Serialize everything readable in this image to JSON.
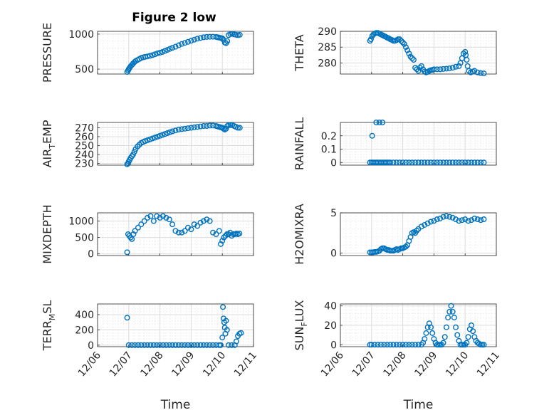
{
  "figure": {
    "title": "Figure 2 low"
  },
  "chart_data": [
    {
      "type": "scatter",
      "panel": "top-left",
      "title": "Figure 2 low",
      "ylabel": "PRESSURE",
      "xlabel": "",
      "xlim": [
        "12/06",
        "12/11"
      ],
      "ylim": [
        430,
        1040
      ],
      "yticks": [
        500,
        1000
      ],
      "xticks": [
        "12/06",
        "12/07",
        "12/08",
        "12/09",
        "12/10",
        "12/11"
      ],
      "grid": true,
      "series": [
        {
          "x": [
            0.95,
            0.98,
            1.0,
            1.03,
            1.06,
            1.1,
            1.14,
            1.18,
            1.22,
            1.28,
            1.34,
            1.4,
            1.46,
            1.52,
            1.6,
            1.68,
            1.76,
            1.84,
            1.92,
            2.0,
            2.08,
            2.16,
            2.24,
            2.32,
            2.4,
            2.5,
            2.6,
            2.7,
            2.8,
            2.9,
            3.0,
            3.1,
            3.2,
            3.3,
            3.4,
            3.5,
            3.6,
            3.7,
            3.8,
            3.85,
            3.9,
            3.95,
            4.0,
            4.04,
            4.08,
            4.12,
            4.16,
            4.2,
            4.26,
            4.32,
            4.38,
            4.44,
            4.5,
            4.56
          ],
          "y": [
            460,
            480,
            500,
            520,
            540,
            560,
            580,
            600,
            615,
            630,
            645,
            660,
            668,
            675,
            682,
            690,
            700,
            712,
            725,
            735,
            745,
            760,
            775,
            790,
            805,
            820,
            840,
            860,
            875,
            890,
            905,
            920,
            935,
            945,
            955,
            960,
            962,
            963,
            960,
            955,
            950,
            945,
            940,
            920,
            880,
            870,
            900,
            985,
            1000,
            1005,
            995,
            990,
            985,
            990
          ]
        }
      ]
    },
    {
      "type": "scatter",
      "panel": "top-right",
      "ylabel": "THETA",
      "xlabel": "",
      "xlim": [
        "12/06",
        "12/11"
      ],
      "ylim": [
        276.5,
        290
      ],
      "yticks": [
        280,
        285,
        290
      ],
      "xticks": [
        "12/06",
        "12/07",
        "12/08",
        "12/09",
        "12/10",
        "12/11"
      ],
      "grid": true,
      "series": [
        {
          "x": [
            0.95,
            0.98,
            1.02,
            1.06,
            1.1,
            1.15,
            1.2,
            1.25,
            1.3,
            1.35,
            1.4,
            1.45,
            1.5,
            1.55,
            1.6,
            1.65,
            1.7,
            1.75,
            1.8,
            1.85,
            1.9,
            1.95,
            2.0,
            2.05,
            2.1,
            2.15,
            2.2,
            2.25,
            2.3,
            2.35,
            2.4,
            2.45,
            2.5,
            2.55,
            2.6,
            2.65,
            2.7,
            2.75,
            2.8,
            2.85,
            2.9,
            2.95,
            3.0,
            3.1,
            3.2,
            3.3,
            3.4,
            3.5,
            3.6,
            3.7,
            3.8,
            3.85,
            3.9,
            3.95,
            4.0,
            4.02,
            4.05,
            4.08,
            4.12,
            4.18,
            4.24,
            4.3,
            4.4,
            4.5,
            4.6
          ],
          "y": [
            287,
            287.5,
            288.5,
            289,
            289.3,
            289.5,
            289.5,
            289.3,
            289,
            288.8,
            288.5,
            288.3,
            288,
            287.8,
            287.5,
            287.3,
            287,
            287,
            287.2,
            287.5,
            287.5,
            287,
            286.5,
            286,
            285,
            284,
            283,
            282,
            281.5,
            281,
            278.5,
            278,
            277.5,
            278.5,
            279,
            278,
            277.3,
            277,
            277.2,
            277.5,
            277.7,
            277.8,
            278,
            278,
            278,
            278.1,
            278.2,
            278.3,
            278.5,
            278.8,
            279,
            280,
            281.5,
            283,
            283.5,
            282.5,
            281,
            279,
            277.5,
            277,
            277.3,
            277.5,
            277,
            276.8,
            276.7
          ]
        }
      ]
    },
    {
      "type": "scatter",
      "panel": "second-left",
      "ylabel": "AIR_TEMP",
      "xlabel": "",
      "xlim": [
        "12/06",
        "12/11"
      ],
      "ylim": [
        228,
        276
      ],
      "yticks": [
        230,
        240,
        250,
        260,
        270
      ],
      "xticks": [
        "12/06",
        "12/07",
        "12/08",
        "12/09",
        "12/10",
        "12/11"
      ],
      "grid": true,
      "series": [
        {
          "x": [
            0.95,
            0.98,
            1.0,
            1.03,
            1.06,
            1.1,
            1.14,
            1.18,
            1.22,
            1.28,
            1.34,
            1.4,
            1.46,
            1.52,
            1.6,
            1.68,
            1.76,
            1.84,
            1.92,
            2.0,
            2.08,
            2.16,
            2.24,
            2.32,
            2.4,
            2.5,
            2.6,
            2.7,
            2.8,
            2.9,
            3.0,
            3.1,
            3.2,
            3.3,
            3.4,
            3.5,
            3.6,
            3.7,
            3.8,
            3.85,
            3.9,
            3.95,
            4.0,
            4.04,
            4.08,
            4.12,
            4.16,
            4.2,
            4.26,
            4.32,
            4.38,
            4.44,
            4.5,
            4.56
          ],
          "y": [
            229,
            230,
            232,
            234,
            236,
            238,
            240,
            243,
            246,
            249,
            251,
            253,
            254,
            255,
            256,
            257,
            258,
            259,
            260,
            261,
            262,
            263,
            264,
            265,
            266,
            267,
            268,
            268.5,
            269,
            269.5,
            270,
            270.5,
            271,
            271.5,
            272,
            272,
            272.5,
            272.5,
            272,
            271.5,
            271,
            270.5,
            270,
            269,
            268,
            269,
            272,
            273,
            273,
            273,
            272,
            271,
            270,
            270
          ]
        }
      ]
    },
    {
      "type": "scatter",
      "panel": "second-right",
      "ylabel": "RAINFALL",
      "xlabel": "",
      "xlim": [
        "12/06",
        "12/11"
      ],
      "ylim": [
        -0.02,
        0.3
      ],
      "yticks": [
        0,
        0.1,
        0.2
      ],
      "xticks": [
        "12/06",
        "12/07",
        "12/08",
        "12/09",
        "12/10",
        "12/11"
      ],
      "grid": true,
      "series": [
        {
          "x": [
            0.95,
            1.0,
            1.05,
            1.1,
            1.15,
            1.2,
            1.25,
            1.3,
            1.35,
            1.4,
            1.45,
            1.5,
            1.55,
            1.6,
            1.7,
            1.8,
            1.9,
            2.0,
            2.1,
            2.2,
            2.3,
            2.4,
            2.5,
            2.6,
            2.7,
            2.8,
            2.9,
            3.0,
            3.1,
            3.2,
            3.3,
            3.4,
            3.5,
            3.6,
            3.7,
            3.8,
            3.9,
            4.0,
            4.1,
            4.2,
            4.3,
            4.4,
            4.5,
            4.6,
            1.02,
            1.15,
            1.25,
            1.35
          ],
          "y": [
            0,
            0,
            0,
            0,
            0,
            0,
            0,
            0,
            0,
            0,
            0,
            0,
            0,
            0,
            0,
            0,
            0,
            0,
            0,
            0,
            0,
            0,
            0,
            0,
            0,
            0,
            0,
            0,
            0,
            0,
            0,
            0,
            0,
            0,
            0,
            0,
            0,
            0,
            0,
            0,
            0,
            0,
            0,
            0,
            0.2,
            0.3,
            0.3,
            0.3
          ]
        }
      ]
    },
    {
      "type": "scatter",
      "panel": "third-left",
      "ylabel": "MIXDEPTH",
      "xlabel": "",
      "xlim": [
        "12/06",
        "12/11"
      ],
      "ylim": [
        -50,
        1250
      ],
      "yticks": [
        0,
        500,
        1000
      ],
      "xticks": [
        "12/06",
        "12/07",
        "12/08",
        "12/09",
        "12/10",
        "12/11"
      ],
      "grid": true,
      "series": [
        {
          "x": [
            0.95,
            0.98,
            1.02,
            1.06,
            1.1,
            1.15,
            1.2,
            1.3,
            1.4,
            1.5,
            1.6,
            1.7,
            1.8,
            1.9,
            2.0,
            2.1,
            2.2,
            2.3,
            2.4,
            2.5,
            2.6,
            2.7,
            2.8,
            2.9,
            3.0,
            3.1,
            3.2,
            3.3,
            3.4,
            3.5,
            3.6,
            3.7,
            3.8,
            3.9,
            3.95,
            4.0,
            4.05,
            4.1,
            4.15,
            4.2,
            4.25,
            4.3,
            4.35,
            4.4,
            4.45,
            4.5,
            4.55
          ],
          "y": [
            50,
            600,
            550,
            500,
            450,
            600,
            700,
            800,
            900,
            1000,
            1100,
            1150,
            1000,
            1150,
            1100,
            1150,
            1100,
            1050,
            900,
            700,
            650,
            650,
            700,
            800,
            750,
            900,
            850,
            950,
            1000,
            1050,
            1000,
            650,
            600,
            700,
            300,
            400,
            500,
            550,
            600,
            600,
            650,
            550,
            600,
            600,
            620,
            600,
            620
          ]
        }
      ]
    },
    {
      "type": "scatter",
      "panel": "third-right",
      "ylabel": "H2OMIXRA",
      "xlabel": "",
      "xlim": [
        "12/06",
        "12/11"
      ],
      "ylim": [
        -0.3,
        5
      ],
      "yticks": [
        0,
        5
      ],
      "xticks": [
        "12/06",
        "12/07",
        "12/08",
        "12/09",
        "12/10",
        "12/11"
      ],
      "grid": true,
      "series": [
        {
          "x": [
            0.95,
            1.0,
            1.05,
            1.1,
            1.15,
            1.2,
            1.25,
            1.3,
            1.35,
            1.4,
            1.45,
            1.5,
            1.55,
            1.6,
            1.65,
            1.7,
            1.75,
            1.8,
            1.85,
            1.9,
            1.95,
            2.0,
            2.05,
            2.1,
            2.15,
            2.2,
            2.25,
            2.3,
            2.35,
            2.4,
            2.45,
            2.5,
            2.6,
            2.7,
            2.8,
            2.9,
            3.0,
            3.1,
            3.2,
            3.3,
            3.4,
            3.5,
            3.6,
            3.7,
            3.8,
            3.9,
            4.0,
            4.1,
            4.2,
            4.3,
            4.4,
            4.5,
            4.6
          ],
          "y": [
            0.1,
            0.1,
            0.1,
            0.15,
            0.15,
            0.2,
            0.3,
            0.5,
            0.6,
            0.6,
            0.5,
            0.4,
            0.4,
            0.3,
            0.3,
            0.3,
            0.4,
            0.5,
            0.4,
            0.5,
            0.6,
            0.6,
            0.7,
            0.8,
            1.0,
            1.5,
            2.0,
            2.5,
            2.6,
            2.5,
            2.8,
            3.0,
            3.3,
            3.5,
            3.7,
            3.9,
            4.0,
            4.2,
            4.3,
            4.5,
            4.6,
            4.5,
            4.4,
            4.2,
            4.0,
            4.1,
            4.2,
            4.0,
            4.1,
            4.3,
            4.2,
            4.1,
            4.2
          ]
        }
      ]
    },
    {
      "type": "scatter",
      "panel": "bottom-left",
      "ylabel": "TERR_MSL",
      "xlabel": "Time",
      "xlim": [
        "12/06",
        "12/11"
      ],
      "ylim": [
        -20,
        540
      ],
      "yticks": [
        0,
        200,
        400
      ],
      "xticks": [
        "12/06",
        "12/07",
        "12/08",
        "12/09",
        "12/10",
        "12/11"
      ],
      "grid": true,
      "series": [
        {
          "x": [
            0.95,
            1.0,
            1.1,
            1.2,
            1.3,
            1.4,
            1.5,
            1.6,
            1.7,
            1.8,
            1.9,
            2.0,
            2.1,
            2.2,
            2.3,
            2.4,
            2.5,
            2.6,
            2.7,
            2.8,
            2.9,
            3.0,
            3.1,
            3.2,
            3.3,
            3.4,
            3.5,
            3.6,
            3.7,
            3.8,
            3.9,
            3.95,
            4.0,
            4.02,
            4.04,
            4.06,
            4.08,
            4.1,
            4.12,
            4.15,
            4.2,
            4.3,
            4.4,
            4.45,
            4.5,
            4.55,
            4.6
          ],
          "y": [
            360,
            0,
            0,
            0,
            0,
            0,
            0,
            0,
            0,
            0,
            0,
            0,
            0,
            0,
            0,
            0,
            0,
            0,
            0,
            0,
            0,
            0,
            0,
            0,
            0,
            0,
            0,
            0,
            0,
            0,
            0,
            0,
            100,
            500,
            350,
            300,
            230,
            150,
            320,
            200,
            0,
            0,
            0,
            50,
            120,
            150,
            160
          ]
        }
      ]
    },
    {
      "type": "scatter",
      "panel": "bottom-right",
      "ylabel": "SUN_FLUX",
      "xlabel": "Time",
      "xlim": [
        "12/06",
        "12/11"
      ],
      "ylim": [
        -2,
        42
      ],
      "yticks": [
        0,
        20,
        40
      ],
      "xticks": [
        "12/06",
        "12/07",
        "12/08",
        "12/09",
        "12/10",
        "12/11"
      ],
      "grid": true,
      "series": [
        {
          "x": [
            0.95,
            1.0,
            1.1,
            1.2,
            1.3,
            1.4,
            1.5,
            1.6,
            1.7,
            1.8,
            1.9,
            2.0,
            2.1,
            2.2,
            2.3,
            2.4,
            2.5,
            2.6,
            2.65,
            2.7,
            2.75,
            2.8,
            2.85,
            2.9,
            2.95,
            3.0,
            3.05,
            3.1,
            3.15,
            3.2,
            3.25,
            3.3,
            3.35,
            3.4,
            3.45,
            3.5,
            3.55,
            3.6,
            3.65,
            3.7,
            3.75,
            3.8,
            3.85,
            3.9,
            3.95,
            4.0,
            4.05,
            4.1,
            4.15,
            4.2,
            4.25,
            4.3,
            4.35,
            4.4,
            4.45,
            4.5,
            4.55,
            4.6
          ],
          "y": [
            0,
            0,
            0,
            0,
            0,
            0,
            0,
            0,
            0,
            0,
            0,
            0,
            0,
            0,
            0,
            0,
            0,
            0,
            2,
            6,
            12,
            18,
            22,
            18,
            12,
            6,
            2,
            0,
            0,
            0,
            0,
            2,
            8,
            18,
            28,
            34,
            40,
            34,
            28,
            18,
            10,
            4,
            0,
            0,
            0,
            0,
            2,
            8,
            16,
            20,
            14,
            8,
            4,
            2,
            1,
            0,
            0,
            0
          ]
        }
      ]
    }
  ]
}
